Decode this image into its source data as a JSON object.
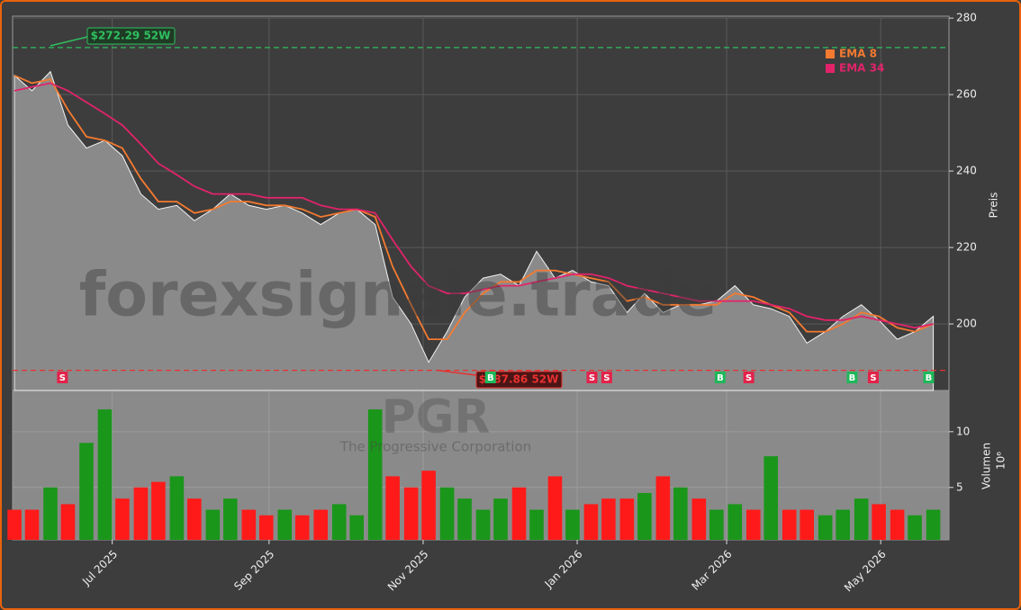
{
  "chart_data": {
    "type": "area",
    "watermark": "forexsignale.trade",
    "symbol": "PGR",
    "company": "The Progressive Corporation",
    "ylabel": "Preis",
    "color": "#8a8a8a",
    "grid": true,
    "x": [
      2025.39,
      2025.409,
      2025.429,
      2025.448,
      2025.468,
      2025.488,
      2025.507,
      2025.527,
      2025.546,
      2025.566,
      2025.585,
      2025.605,
      2025.624,
      2025.644,
      2025.663,
      2025.683,
      2025.702,
      2025.722,
      2025.742,
      2025.761,
      2025.781,
      2025.8,
      2025.82,
      2025.839,
      2025.859,
      2025.878,
      2025.898,
      2025.917,
      2025.937,
      2025.956,
      2025.976,
      2025.995,
      2026.015,
      2026.034,
      2026.054,
      2026.073,
      2026.093,
      2026.112,
      2026.132,
      2026.151,
      2026.171,
      2026.191,
      2026.21,
      2026.23,
      2026.249,
      2026.269,
      2026.288,
      2026.308,
      2026.327,
      2026.347,
      2026.366,
      2026.386
    ],
    "values": [
      265,
      261,
      266,
      252,
      246,
      248,
      244,
      234,
      230,
      231,
      227,
      230,
      234,
      231,
      230,
      231,
      229,
      226,
      229,
      230,
      226,
      207,
      200,
      190,
      198,
      207,
      212,
      213,
      210,
      219,
      212,
      214,
      211,
      210,
      203,
      208,
      203,
      205,
      205,
      206,
      210,
      205,
      204,
      202,
      195,
      198,
      202,
      205,
      201,
      196,
      198,
      202
    ],
    "series": [
      {
        "name": "EMA 8",
        "color": "#f47a30",
        "values": [
          265,
          263,
          264,
          256,
          249,
          248,
          246,
          238,
          232,
          232,
          229,
          230,
          232,
          232,
          231,
          231,
          230,
          228,
          229,
          230,
          228,
          215,
          205,
          196,
          196,
          203,
          208,
          211,
          211,
          214,
          214,
          213,
          212,
          211,
          206,
          207,
          205,
          205,
          205,
          205,
          208,
          207,
          205,
          203,
          198,
          198,
          200,
          203,
          202,
          199,
          198,
          200
        ]
      },
      {
        "name": "EMA 34",
        "color": "#e2236a",
        "values": [
          261,
          262,
          263,
          261,
          258,
          255,
          252,
          247,
          242,
          239,
          236,
          234,
          234,
          234,
          233,
          233,
          233,
          231,
          230,
          230,
          229,
          222,
          215,
          210,
          208,
          208,
          209,
          210,
          210,
          211,
          212,
          213,
          213,
          212,
          210,
          209,
          208,
          207,
          206,
          206,
          206,
          206,
          205,
          204,
          202,
          201,
          201,
          202,
          201,
          200,
          199,
          200
        ]
      }
    ],
    "xlim": [
      2025.388,
      2026.403
    ],
    "xticks": [
      {
        "value": 2025.496,
        "label": "Jul 2025"
      },
      {
        "value": 2025.666,
        "label": "Sep 2025"
      },
      {
        "value": 2025.833,
        "label": "Nov 2025"
      },
      {
        "value": 2026.0,
        "label": "Jan 2026"
      },
      {
        "value": 2026.162,
        "label": "Mar 2026"
      },
      {
        "value": 2026.329,
        "label": "May 2026"
      }
    ],
    "ylim": [
      182.6,
      280.5
    ],
    "yticks": [
      200,
      220,
      240,
      260,
      280
    ],
    "high_52w": {
      "value": 272.29,
      "label": "$272.29 52W",
      "color": "#2fbf5f"
    },
    "low_52w": {
      "value": 187.86,
      "label": "$187.86 52W",
      "color": "#e83030"
    },
    "signals": [
      {
        "x": 2025.442,
        "label": "S",
        "color": "#e2234a"
      },
      {
        "x": 2025.906,
        "label": "B",
        "color": "#1fb85a"
      },
      {
        "x": 2026.016,
        "label": "S",
        "color": "#e2234a"
      },
      {
        "x": 2026.032,
        "label": "S",
        "color": "#e2234a"
      },
      {
        "x": 2026.155,
        "label": "B",
        "color": "#1fb85a"
      },
      {
        "x": 2026.186,
        "label": "S",
        "color": "#e2234a"
      },
      {
        "x": 2026.298,
        "label": "B",
        "color": "#1fb85a"
      },
      {
        "x": 2026.321,
        "label": "S",
        "color": "#e2234a"
      },
      {
        "x": 2026.381,
        "label": "B",
        "color": "#1fb85a"
      }
    ],
    "volume": {
      "ylabel": "Volumen",
      "unit": "10⁶",
      "ylim": [
        0.3,
        13.7
      ],
      "yticks": [
        5,
        10
      ],
      "values": [
        3,
        3,
        5,
        3.5,
        9,
        12,
        4,
        5,
        5.5,
        6,
        4,
        3,
        4,
        3,
        2.5,
        3,
        2.5,
        3,
        3.5,
        2.5,
        12,
        6,
        5,
        6.5,
        5,
        4,
        3,
        4,
        5,
        3,
        6,
        3,
        3.5,
        4,
        4,
        4.5,
        6,
        5,
        4,
        3,
        3.5,
        3,
        7.8,
        3,
        3,
        2.5,
        3,
        4,
        3.5,
        3,
        2.5,
        3
      ],
      "colors": [
        "#ff1a1a",
        "#ff1a1a",
        "#1a961a",
        "#ff1a1a",
        "#1a961a",
        "#1a961a",
        "#ff1a1a",
        "#ff1a1a",
        "#ff1a1a",
        "#1a961a",
        "#ff1a1a",
        "#1a961a",
        "#1a961a",
        "#ff1a1a",
        "#ff1a1a",
        "#1a961a",
        "#ff1a1a",
        "#ff1a1a",
        "#1a961a",
        "#1a961a",
        "#1a961a",
        "#ff1a1a",
        "#ff1a1a",
        "#ff1a1a",
        "#1a961a",
        "#1a961a",
        "#1a961a",
        "#1a961a",
        "#ff1a1a",
        "#1a961a",
        "#ff1a1a",
        "#1a961a",
        "#ff1a1a",
        "#ff1a1a",
        "#ff1a1a",
        "#1a961a",
        "#ff1a1a",
        "#1a961a",
        "#ff1a1a",
        "#1a961a",
        "#1a961a",
        "#ff1a1a",
        "#1a961a",
        "#ff1a1a",
        "#ff1a1a",
        "#1a961a",
        "#1a961a",
        "#1a961a",
        "#ff1a1a",
        "#ff1a1a",
        "#1a961a",
        "#1a961a"
      ]
    }
  }
}
